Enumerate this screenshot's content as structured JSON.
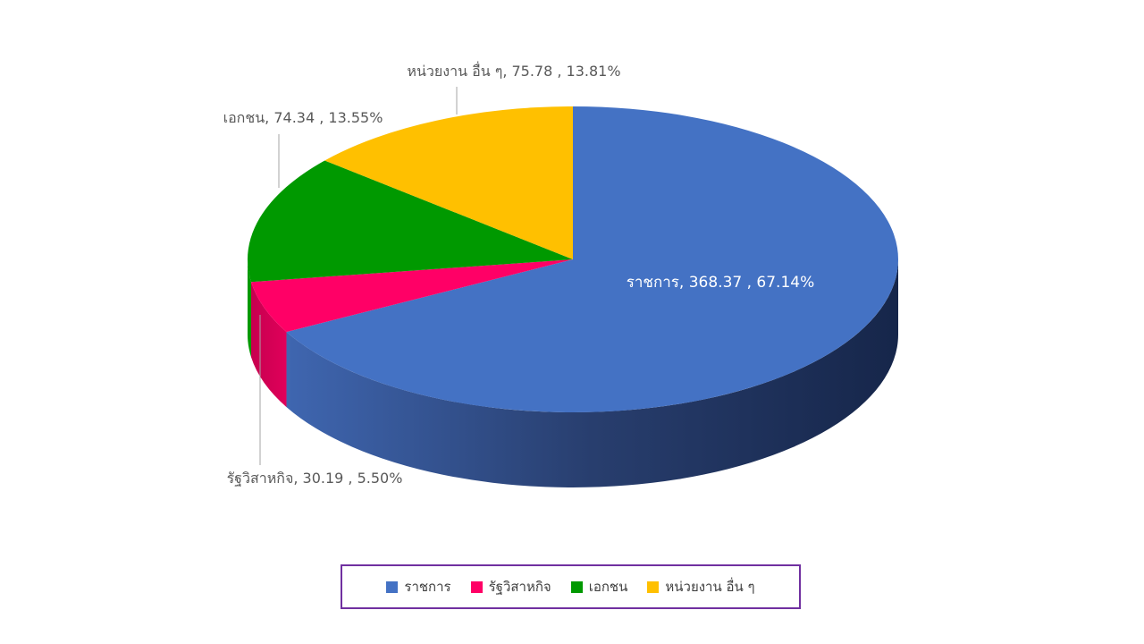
{
  "chart_data": {
    "type": "pie",
    "title": "",
    "categories": [
      "ราชการ",
      "รัฐวิสาหกิจ",
      "เอกชน",
      "หน่วยงาน อื่น ๆ"
    ],
    "values": [
      368.37,
      30.19,
      74.34,
      75.78
    ],
    "percents": [
      "67.14%",
      "5.50%",
      "13.55%",
      "13.81%"
    ],
    "data_labels": [
      "ราชการ,  368.37 , 67.14%",
      "รัฐวิสาหกิจ,  30.19 , 5.50%",
      "เอกชน,  74.34 , 13.55%",
      "หน่วยงาน อื่น ๆ,  75.78 , 13.81%"
    ],
    "colors": [
      "#4472c4",
      "#ff0066",
      "#009900",
      "#ffc000"
    ],
    "legend_position": "bottom",
    "style": "3d"
  }
}
